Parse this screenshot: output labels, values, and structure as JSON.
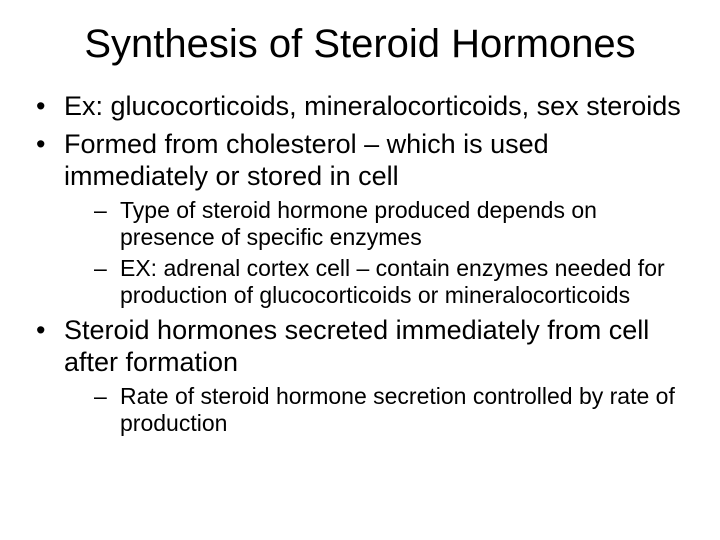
{
  "slide": {
    "title": "Synthesis of Steroid Hormones",
    "title_fontsize": 40,
    "background_color": "#ffffff",
    "text_color": "#000000",
    "font_family": "Arial",
    "bullets": [
      {
        "text": "Ex:  glucocorticoids, mineralocorticoids, sex steroids",
        "fontsize": 27
      },
      {
        "text": "Formed from cholesterol – which is used immediately or stored in cell",
        "fontsize": 27,
        "sub": [
          {
            "text": "Type of steroid hormone produced depends on presence of specific enzymes",
            "fontsize": 23
          },
          {
            "text": "EX:  adrenal cortex cell – contain enzymes needed for production of glucocorticoids or mineralocorticoids",
            "fontsize": 23
          }
        ]
      },
      {
        "text": "Steroid hormones secreted immediately from cell after formation",
        "fontsize": 27,
        "sub": [
          {
            "text": "Rate of steroid hormone secretion controlled by rate of production",
            "fontsize": 23
          }
        ]
      }
    ]
  }
}
